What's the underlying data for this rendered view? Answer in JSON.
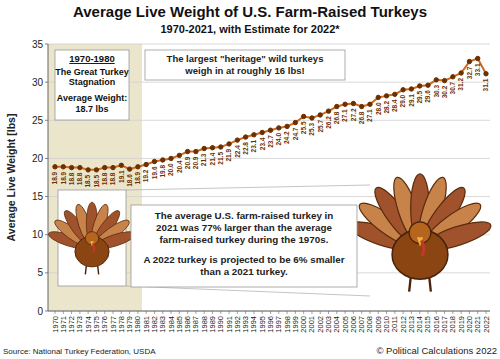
{
  "chart_data": {
    "type": "line",
    "title": "Average Live Weight of U.S. Farm-Raised Turkeys",
    "subtitle": "1970-2021, with Estimate for 2022*",
    "y_label": "Average Live Weight [lbs]",
    "categories": [
      "1970",
      "1971",
      "1972",
      "1973",
      "1974",
      "1975",
      "1976",
      "1977",
      "1978",
      "1979",
      "1980",
      "1981",
      "1982",
      "1983",
      "1984",
      "1985",
      "1986",
      "1987",
      "1988",
      "1989",
      "1990",
      "1991",
      "1992",
      "1993",
      "1994",
      "1995",
      "1996",
      "1997",
      "1998",
      "1999",
      "2000",
      "2001",
      "2002",
      "2003",
      "2004",
      "2005",
      "2006",
      "2007",
      "2008",
      "2009",
      "2010",
      "2011",
      "2012",
      "2013",
      "2014",
      "2015",
      "2016",
      "2017",
      "2018",
      "2019",
      "2020",
      "2021",
      "2022"
    ],
    "values": [
      18.9,
      18.9,
      18.8,
      18.8,
      18.5,
      18.5,
      18.8,
      18.8,
      19.1,
      18.6,
      18.9,
      19.2,
      19.6,
      19.8,
      20.0,
      20.4,
      20.9,
      20.9,
      21.3,
      21.4,
      21.5,
      21.9,
      22.4,
      22.8,
      23.1,
      23.4,
      23.7,
      24.0,
      24.2,
      24.7,
      25.5,
      25.3,
      25.7,
      26.2,
      26.8,
      27.1,
      27.2,
      26.8,
      27.1,
      28.0,
      28.2,
      28.4,
      29.0,
      29.1,
      29.5,
      29.6,
      30.3,
      30.2,
      30.7,
      31.2,
      32.7,
      33.1,
      31.1
    ],
    "value_labels": [
      "18.9",
      "18.9",
      "18.8",
      "18.8",
      "18.5",
      "18.5",
      "18.8",
      "18.8",
      "19.1",
      "18.6",
      "18.9",
      "19.2",
      "19.6",
      "19.8",
      "20.0",
      "20.4",
      "20.9",
      "20.9",
      "21.3",
      "21.4",
      "21.5",
      "21.9",
      "22.4",
      "22.8",
      "23.1",
      "23.4",
      "23.7",
      "24.0",
      "24.2",
      "24.7",
      "25.5",
      "25.3",
      "25.7",
      "26.2",
      "26.8",
      "27.1",
      "27.2",
      "26.8",
      "27.1",
      "28.0",
      "28.2",
      "28.4",
      "29.0",
      "29.1",
      "29.5",
      "29.6",
      "30.3",
      "30.2",
      "30.7",
      "31.2",
      "32.7",
      "33.1",
      "31.1"
    ],
    "ylim": [
      0,
      35
    ],
    "yticks": [
      0,
      5,
      10,
      15,
      20,
      25,
      30,
      35
    ],
    "grid": true,
    "data_labels": true,
    "color": "#d2691e",
    "marker": "circle",
    "annotations": {
      "stagnation": {
        "heading": "1970-1980",
        "lines": [
          "The Great Turkey",
          "Stagnation",
          "Average Weight:",
          "18.7 lbs"
        ]
      },
      "heritage": {
        "lines": [
          "The largest \"heritage\" wild turkeys",
          "weigh in at roughly 16 lbs!"
        ]
      },
      "comparison": {
        "paragraphs": [
          [
            "The average U.S. farm-raised turkey in",
            "2021 was 77% larger than the average",
            "farm-raised turkey during the 1970s."
          ],
          [
            "A 2022 turkey is projected to be 6% smaller",
            "than a 2021 turkey."
          ]
        ]
      }
    },
    "source": "Source: National Turkey Federation, USDA",
    "copyright": "© Political Calculations 2022"
  }
}
